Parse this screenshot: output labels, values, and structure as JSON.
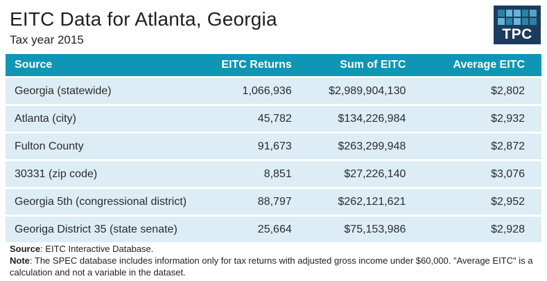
{
  "header": {
    "title": "EITC Data for Atlanta, Georgia",
    "subtitle": "Tax year 2015"
  },
  "logo": {
    "text": "TPC",
    "bg_color": "#1c3c5e",
    "squares": [
      "#2e81a8",
      "#64b5d8",
      "#64b5d8",
      "#2e81a8",
      "#4fa5c6",
      "#64b5d8",
      "#2e81a8",
      "#64b5d8",
      "#2e81a8",
      "#2e81a8"
    ]
  },
  "colors": {
    "header_bg": "#0f96b4",
    "header_text": "#ffffff",
    "row_bg": "#dcedf5"
  },
  "table": {
    "columns": [
      "Source",
      "EITC Returns",
      "Sum of EITC",
      "Average EITC"
    ],
    "rows": [
      {
        "source": "Georgia (statewide)",
        "returns": "1,066,936",
        "sum": "$2,989,904,130",
        "avg": "$2,802"
      },
      {
        "source": "Atlanta (city)",
        "returns": "45,782",
        "sum": "$134,226,984",
        "avg": "$2,932"
      },
      {
        "source": "Fulton County",
        "returns": "91,673",
        "sum": "$263,299,948",
        "avg": "$2,872"
      },
      {
        "source": "30331 (zip code)",
        "returns": "8,851",
        "sum": "$27,226,140",
        "avg": "$3,076"
      },
      {
        "source": "Georgia 5th (congressional district)",
        "returns": "88,797",
        "sum": "$262,121,621",
        "avg": "$2,952"
      },
      {
        "source": "Georiga District 35 (state senate)",
        "returns": "25,664",
        "sum": "$75,153,986",
        "avg": "$2,928"
      }
    ]
  },
  "footer": {
    "source_label": "Source",
    "source_text": ": EITC Interactive Database.",
    "note_label": "Note",
    "note_text": ": The SPEC database includes information only for tax returns with adjusted gross income under $60,000. \"Average EITC\" is a calculation and not a variable in the dataset."
  },
  "chart_data": {
    "type": "table",
    "title": "EITC Data for Atlanta, Georgia",
    "subtitle": "Tax year 2015",
    "columns": [
      "Source",
      "EITC Returns",
      "Sum of EITC",
      "Average EITC"
    ],
    "rows": [
      [
        "Georgia (statewide)",
        1066936,
        2989904130,
        2802
      ],
      [
        "Atlanta (city)",
        45782,
        134226984,
        2932
      ],
      [
        "Fulton County",
        91673,
        263299948,
        2872
      ],
      [
        "30331 (zip code)",
        8851,
        27226140,
        3076
      ],
      [
        "Georgia 5th (congressional district)",
        88797,
        262121621,
        2952
      ],
      [
        "Georiga District 35 (state senate)",
        25664,
        75153986,
        2928
      ]
    ],
    "notes": [
      "Source: EITC Interactive Database.",
      "Note: The SPEC database includes information only for tax returns with adjusted gross income under $60,000. \"Average EITC\" is a calculation and not a variable in the dataset."
    ]
  }
}
